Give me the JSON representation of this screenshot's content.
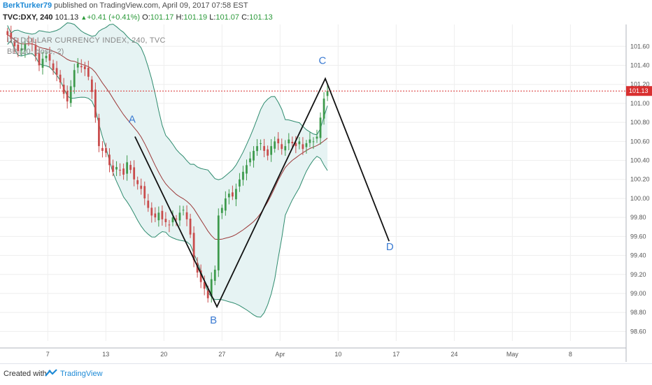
{
  "header": {
    "author": "BerkTurker79",
    "published_text": " published on TradingView.com, April 09, 2017 07:58 EST",
    "symbol": "TVC:DXY, 240",
    "last": "101.13",
    "change": "+0.41 (+0.41%)",
    "o_label": "O:",
    "o_val": "101.17",
    "h_label": "H:",
    "h_val": "101.19",
    "l_label": "L:",
    "l_val": "101.07",
    "c_label": "C:",
    "c_val": "101.13"
  },
  "legend": {
    "series_title": "US DOLLAR CURRENCY INDEX, 240, TVC",
    "indicator": "BB (20, close, 2)"
  },
  "footer": {
    "created_with": "Created with",
    "brand": "TradingView"
  },
  "colors": {
    "up": "#3d9a4c",
    "down": "#c94c4c",
    "band": "#2e8b6e",
    "band_fill": "#e6f3f3",
    "basis": "#9c3a3a",
    "price_line": "#d93030",
    "wave_label": "#3a7ad2",
    "axis_text": "#555555",
    "grid": "#eeeeee"
  },
  "chart_data": {
    "type": "candlestick",
    "title": "US DOLLAR CURRENCY INDEX, 240, TVC",
    "x_ticks": [
      "7",
      "13",
      "20",
      "27",
      "Apr",
      "10",
      "17",
      "24",
      "May",
      "8"
    ],
    "y_ticks": [
      "101.60",
      "101.40",
      "101.20",
      "101.00",
      "100.80",
      "100.60",
      "100.40",
      "100.20",
      "100.00",
      "99.80",
      "99.60",
      "99.40",
      "99.20",
      "99.00",
      "98.80",
      "98.60"
    ],
    "ylim": [
      98.5,
      101.83
    ],
    "last_price_label": "101.13",
    "last_price": 101.13,
    "grid": true,
    "close_path": [
      101.72,
      101.68,
      101.6,
      101.55,
      101.58,
      101.62,
      101.64,
      101.62,
      101.5,
      101.4,
      101.47,
      101.5,
      101.45,
      101.35,
      101.3,
      101.22,
      101.1,
      101.02,
      101.18,
      101.35,
      101.42,
      101.38,
      101.36,
      101.28,
      101.12,
      100.85,
      100.55,
      100.5,
      100.48,
      100.35,
      100.28,
      100.33,
      100.3,
      100.25,
      100.38,
      100.3,
      100.2,
      100.15,
      100.1,
      100.0,
      99.9,
      99.82,
      99.8,
      99.85,
      99.78,
      99.75,
      99.72,
      99.8,
      99.78,
      99.85,
      99.88,
      99.78,
      99.62,
      99.35,
      99.22,
      99.12,
      99.05,
      98.95,
      99.15,
      99.25,
      99.82,
      99.9,
      100.0,
      100.05,
      100.02,
      100.1,
      100.2,
      100.28,
      100.35,
      100.42,
      100.5,
      100.55,
      100.58,
      100.5,
      100.45,
      100.55,
      100.6,
      100.58,
      100.52,
      100.55,
      100.62,
      100.58,
      100.55,
      100.6,
      100.52,
      100.58,
      100.62,
      100.6,
      100.65,
      100.85,
      101.05,
      101.13
    ],
    "bollinger": {
      "period": 20,
      "source": "close",
      "mult": 2
    },
    "pattern": {
      "labels": [
        "A",
        "B",
        "C",
        "D"
      ],
      "line_points": [
        {
          "t": 0.2155,
          "price": 100.65
        },
        {
          "t": 0.3465,
          "price": 98.86
        },
        {
          "t": 0.5195,
          "price": 101.26
        },
        {
          "t": 0.6215,
          "price": 99.55
        }
      ],
      "inner_lines": [
        [
          {
            "t": 0.2155,
            "price": 100.65
          },
          {
            "t": 0.3465,
            "price": 98.86
          }
        ],
        [
          {
            "t": 0.3465,
            "price": 98.86
          },
          {
            "t": 0.5195,
            "price": 101.26
          }
        ]
      ]
    }
  }
}
